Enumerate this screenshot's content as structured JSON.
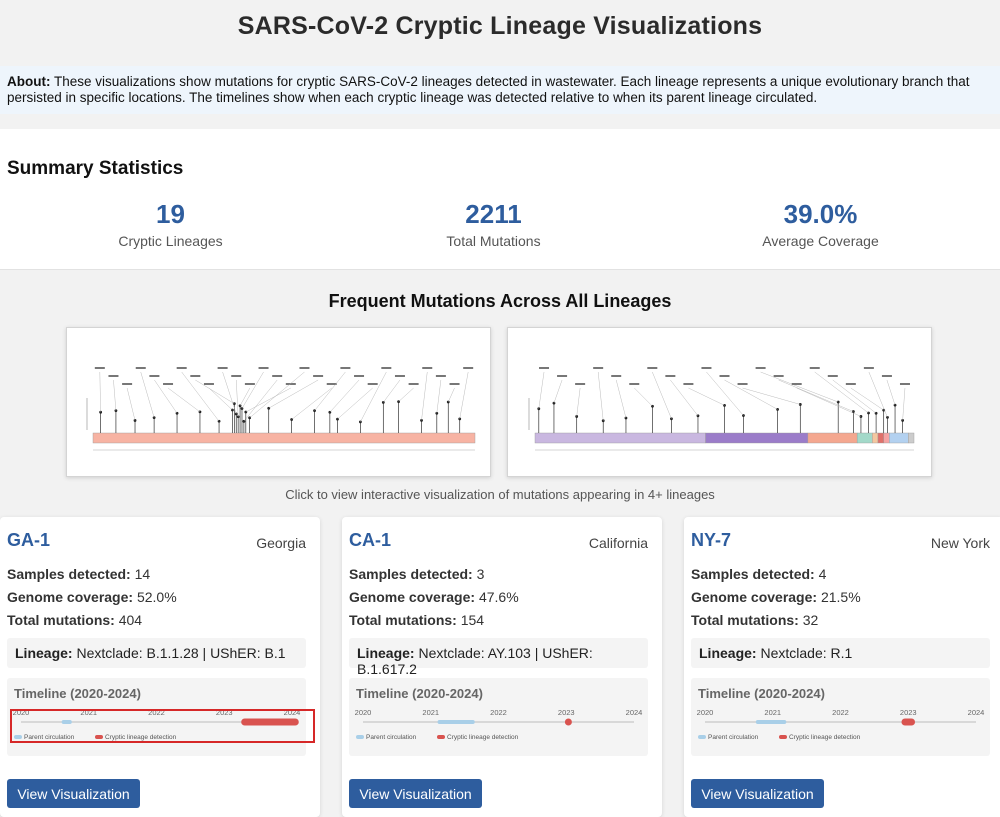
{
  "page_title": "SARS-CoV-2 Cryptic Lineage Visualizations",
  "about": {
    "label": "About:",
    "text": "These visualizations show mutations for cryptic SARS-CoV-2 lineages detected in wastewater. Each lineage represents a unique evolutionary branch that persisted in specific locations. The timelines show when each cryptic lineage was detected relative to when its parent lineage circulated."
  },
  "summary": {
    "title": "Summary Statistics",
    "stats": [
      {
        "value": "19",
        "label": "Cryptic Lineages"
      },
      {
        "value": "2211",
        "label": "Total Mutations"
      },
      {
        "value": "39.0%",
        "label": "Average Coverage"
      }
    ]
  },
  "frequent": {
    "title": "Frequent Mutations Across All Lineages",
    "caption": "Click to view interactive visualization of mutations appearing in 4+ lineages"
  },
  "colors": {
    "accent": "#2e5d9e",
    "parent": "#a9cfe8",
    "cryptic": "#d9534f",
    "highlight": "#d62828"
  },
  "timeline_labels": {
    "title": "Timeline (2020-2024)",
    "years": [
      "2020",
      "2021",
      "2022",
      "2023",
      "2024"
    ],
    "legend_parent": "Parent circulation",
    "legend_cryptic": "Cryptic lineage detection"
  },
  "field_labels": {
    "samples": "Samples detected:",
    "coverage": "Genome coverage:",
    "mutations": "Total mutations:",
    "lineage": "Lineage:"
  },
  "button_label": "View Visualization",
  "cards": [
    {
      "name": "GA-1",
      "location": "Georgia",
      "samples": "14",
      "coverage": "52.0%",
      "mutations": "404",
      "lineage": "Nextclade: B.1.1.28 | UShER: B.1",
      "parent_range": [
        2020.6,
        2020.75
      ],
      "cryptic_range": [
        2023.25,
        2024.1
      ]
    },
    {
      "name": "CA-1",
      "location": "California",
      "samples": "3",
      "coverage": "47.6%",
      "mutations": "154",
      "lineage": "Nextclade: AY.103 | UShER: B.1.617.2",
      "parent_range": [
        2021.1,
        2021.65
      ],
      "cryptic_range": [
        2022.98,
        2023.05
      ]
    },
    {
      "name": "NY-7",
      "location": "New York",
      "samples": "4",
      "coverage": "21.5%",
      "mutations": "32",
      "lineage": "Nextclade: R.1",
      "parent_range": [
        2020.75,
        2021.2
      ],
      "cryptic_range": [
        2022.9,
        2023.1
      ]
    }
  ]
}
